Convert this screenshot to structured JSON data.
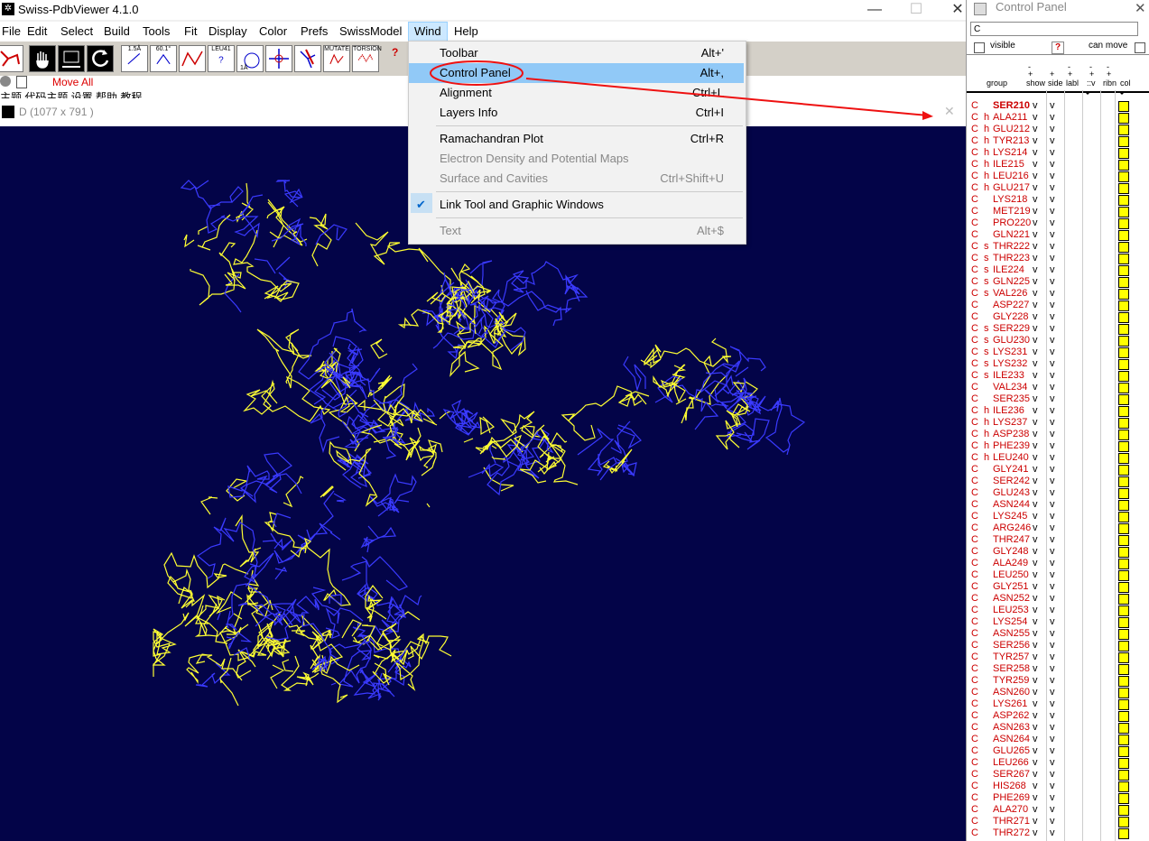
{
  "app": {
    "title": "Swiss-PdbViewer 4.1.0",
    "minimize": "—",
    "maximize": "☐",
    "close": "✕"
  },
  "menubar": [
    "File",
    "Edit",
    "Select",
    "Build",
    "Tools",
    "Fit",
    "Display",
    "Color",
    "Prefs",
    "SwissModel",
    "Wind",
    "Help"
  ],
  "toolbar": {
    "buttons": [
      "1.5Å",
      "60.1°",
      "",
      "LEU41",
      "1Å",
      "",
      "",
      "",
      "MUTATE",
      "TORSION"
    ],
    "help_icon": "?",
    "move_all": "Move All",
    "chinese_strip": "主题  代码主题  设置  帮助  教程"
  },
  "graphic_window": {
    "title": "D  (1077 x 791 )",
    "close": "✕"
  },
  "wind_menu": {
    "items": [
      {
        "label": "Toolbar",
        "shortcut": "Alt+'",
        "enabled": true
      },
      {
        "label": "Control Panel",
        "shortcut": "Alt+,",
        "enabled": true,
        "highlighted": true
      },
      {
        "label": "Alignment",
        "shortcut": "Ctrl+L",
        "enabled": true
      },
      {
        "label": "Layers Info",
        "shortcut": "Ctrl+I",
        "enabled": true
      },
      {
        "label": "Ramachandran Plot",
        "shortcut": "Ctrl+R",
        "enabled": true
      },
      {
        "label": "Electron Density and Potential Maps",
        "shortcut": "",
        "enabled": false
      },
      {
        "label": "Surface and Cavities",
        "shortcut": "Ctrl+Shift+U",
        "enabled": false
      },
      {
        "label": "Link Tool and Graphic Windows",
        "shortcut": "",
        "enabled": true,
        "checked": true
      },
      {
        "label": "Text",
        "shortcut": "Alt+$",
        "enabled": false
      }
    ],
    "check": "✔"
  },
  "control_panel": {
    "title": "Control Panel",
    "close": "✕",
    "chain_field": "C",
    "visible_label": "visible",
    "help": "?",
    "can_move_label": "can move",
    "headers": {
      "group": "group",
      "show": "show",
      "side": "side",
      "labl": "labl",
      "v": "::v",
      "ribn": "ribn",
      "col": "col",
      "minus": "-",
      "plus": "+"
    },
    "residues": [
      {
        "chain": "C",
        "ss": "",
        "name": "SER210",
        "bold": true
      },
      {
        "chain": "C",
        "ss": "h",
        "name": "ALA211"
      },
      {
        "chain": "C",
        "ss": "h",
        "name": "GLU212"
      },
      {
        "chain": "C",
        "ss": "h",
        "name": "TYR213"
      },
      {
        "chain": "C",
        "ss": "h",
        "name": "LYS214"
      },
      {
        "chain": "C",
        "ss": "h",
        "name": "ILE215"
      },
      {
        "chain": "C",
        "ss": "h",
        "name": "LEU216"
      },
      {
        "chain": "C",
        "ss": "h",
        "name": "GLU217"
      },
      {
        "chain": "C",
        "ss": "",
        "name": "LYS218"
      },
      {
        "chain": "C",
        "ss": "",
        "name": "MET219"
      },
      {
        "chain": "C",
        "ss": "",
        "name": "PRO220"
      },
      {
        "chain": "C",
        "ss": "",
        "name": "GLN221"
      },
      {
        "chain": "C",
        "ss": "s",
        "name": "THR222"
      },
      {
        "chain": "C",
        "ss": "s",
        "name": "THR223"
      },
      {
        "chain": "C",
        "ss": "s",
        "name": "ILE224"
      },
      {
        "chain": "C",
        "ss": "s",
        "name": "GLN225"
      },
      {
        "chain": "C",
        "ss": "s",
        "name": "VAL226"
      },
      {
        "chain": "C",
        "ss": "",
        "name": "ASP227"
      },
      {
        "chain": "C",
        "ss": "",
        "name": "GLY228"
      },
      {
        "chain": "C",
        "ss": "s",
        "name": "SER229"
      },
      {
        "chain": "C",
        "ss": "s",
        "name": "GLU230"
      },
      {
        "chain": "C",
        "ss": "s",
        "name": "LYS231"
      },
      {
        "chain": "C",
        "ss": "s",
        "name": "LYS232"
      },
      {
        "chain": "C",
        "ss": "s",
        "name": "ILE233"
      },
      {
        "chain": "C",
        "ss": "",
        "name": "VAL234"
      },
      {
        "chain": "C",
        "ss": "",
        "name": "SER235"
      },
      {
        "chain": "C",
        "ss": "h",
        "name": "ILE236"
      },
      {
        "chain": "C",
        "ss": "h",
        "name": "LYS237"
      },
      {
        "chain": "C",
        "ss": "h",
        "name": "ASP238"
      },
      {
        "chain": "C",
        "ss": "h",
        "name": "PHE239"
      },
      {
        "chain": "C",
        "ss": "h",
        "name": "LEU240"
      },
      {
        "chain": "C",
        "ss": "",
        "name": "GLY241"
      },
      {
        "chain": "C",
        "ss": "",
        "name": "SER242"
      },
      {
        "chain": "C",
        "ss": "",
        "name": "GLU243"
      },
      {
        "chain": "C",
        "ss": "",
        "name": "ASN244"
      },
      {
        "chain": "C",
        "ss": "",
        "name": "LYS245"
      },
      {
        "chain": "C",
        "ss": "",
        "name": "ARG246"
      },
      {
        "chain": "C",
        "ss": "",
        "name": "THR247"
      },
      {
        "chain": "C",
        "ss": "",
        "name": "GLY248"
      },
      {
        "chain": "C",
        "ss": "",
        "name": "ALA249"
      },
      {
        "chain": "C",
        "ss": "",
        "name": "LEU250"
      },
      {
        "chain": "C",
        "ss": "",
        "name": "GLY251"
      },
      {
        "chain": "C",
        "ss": "",
        "name": "ASN252"
      },
      {
        "chain": "C",
        "ss": "",
        "name": "LEU253"
      },
      {
        "chain": "C",
        "ss": "",
        "name": "LYS254"
      },
      {
        "chain": "C",
        "ss": "",
        "name": "ASN255"
      },
      {
        "chain": "C",
        "ss": "",
        "name": "SER256"
      },
      {
        "chain": "C",
        "ss": "",
        "name": "TYR257"
      },
      {
        "chain": "C",
        "ss": "",
        "name": "SER258"
      },
      {
        "chain": "C",
        "ss": "",
        "name": "TYR259"
      },
      {
        "chain": "C",
        "ss": "",
        "name": "ASN260"
      },
      {
        "chain": "C",
        "ss": "",
        "name": "LYS261"
      },
      {
        "chain": "C",
        "ss": "",
        "name": "ASP262"
      },
      {
        "chain": "C",
        "ss": "",
        "name": "ASN263"
      },
      {
        "chain": "C",
        "ss": "",
        "name": "ASN264"
      },
      {
        "chain": "C",
        "ss": "",
        "name": "GLU265"
      },
      {
        "chain": "C",
        "ss": "",
        "name": "LEU266"
      },
      {
        "chain": "C",
        "ss": "",
        "name": "SER267"
      },
      {
        "chain": "C",
        "ss": "",
        "name": "HIS268"
      },
      {
        "chain": "C",
        "ss": "",
        "name": "PHE269"
      },
      {
        "chain": "C",
        "ss": "",
        "name": "ALA270"
      },
      {
        "chain": "C",
        "ss": "",
        "name": "THR271"
      },
      {
        "chain": "C",
        "ss": "",
        "name": "THR272"
      }
    ],
    "show_mark": "v",
    "side_mark": "v"
  },
  "colors": {
    "viewer_bg": "#030448",
    "yellow_bonds": "#ffff33",
    "blue_bonds": "#3a3aff",
    "annotation": "#e11"
  }
}
